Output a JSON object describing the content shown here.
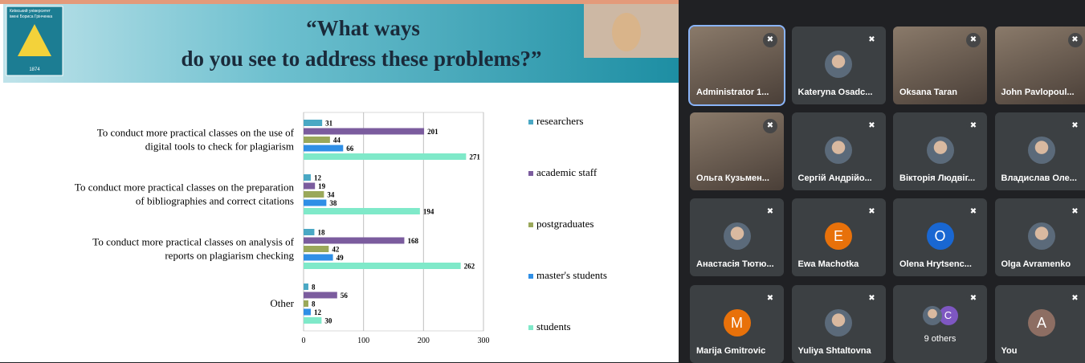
{
  "slide": {
    "logo_text": [
      "Київський університет",
      "імені Бориса Грінченка"
    ],
    "logo_year": "1874",
    "title_lines": [
      "“What ways",
      "do you see to address these problems?”"
    ],
    "chart_data": {
      "type": "bar",
      "orientation": "horizontal",
      "categories": [
        [
          "To conduct more practical classes on the use of",
          "digital tools to check for plagiarism"
        ],
        [
          "To conduct more practical classes on the preparation",
          "of bibliographies and correct citations"
        ],
        [
          "To conduct more practical classes on analysis of",
          "reports on plagiarism checking"
        ],
        [
          "Other"
        ]
      ],
      "series": [
        {
          "name": "researchers",
          "color": "#4aa8c4",
          "values": [
            31,
            12,
            18,
            8
          ]
        },
        {
          "name": "academic staff",
          "color": "#7b5c9e",
          "values": [
            201,
            19,
            168,
            56
          ]
        },
        {
          "name": "postgraduates",
          "color": "#9aa85a",
          "values": [
            44,
            34,
            42,
            8
          ]
        },
        {
          "name": "master's students",
          "color": "#2f8fe6",
          "values": [
            66,
            38,
            49,
            12
          ]
        },
        {
          "name": "students",
          "color": "#7fe9c9",
          "values": [
            271,
            194,
            262,
            30
          ]
        }
      ],
      "xlim": [
        0,
        300
      ],
      "xticks": [
        0,
        100,
        200,
        300
      ],
      "grid": true,
      "legend": "right"
    }
  },
  "participants": [
    {
      "name": "Administrator 1...",
      "kind": "video"
    },
    {
      "name": "Kateryna Osadc...",
      "kind": "photo"
    },
    {
      "name": "Oksana Taran",
      "kind": "video"
    },
    {
      "name": "John Pavlopoul...",
      "kind": "video"
    },
    {
      "name": "Ольга Кузьмен...",
      "kind": "video"
    },
    {
      "name": "Сергій Андрійо...",
      "kind": "photo"
    },
    {
      "name": "Вікторія Людвіг...",
      "kind": "photo"
    },
    {
      "name": "Владислав Оле...",
      "kind": "photo"
    },
    {
      "name": "Анастасія Тютю...",
      "kind": "photo"
    },
    {
      "name": "Ewa Machotka",
      "kind": "letter",
      "avatar": "E",
      "color": "#e8710a"
    },
    {
      "name": "Olena Hrytsenc...",
      "kind": "letter",
      "avatar": "O",
      "color": "#1967d2"
    },
    {
      "name": "Olga Avramenko",
      "kind": "photo"
    },
    {
      "name": "Marija Gmitrovic",
      "kind": "letter",
      "avatar": "M",
      "color": "#e8710a"
    },
    {
      "name": "Yuliya Shtaltovna",
      "kind": "photo"
    },
    {
      "name": "9 others",
      "kind": "others",
      "avatar": "C",
      "color": "#7e57c2"
    },
    {
      "name": "You",
      "kind": "letter",
      "avatar": "A",
      "color": "#8d6e63"
    }
  ]
}
